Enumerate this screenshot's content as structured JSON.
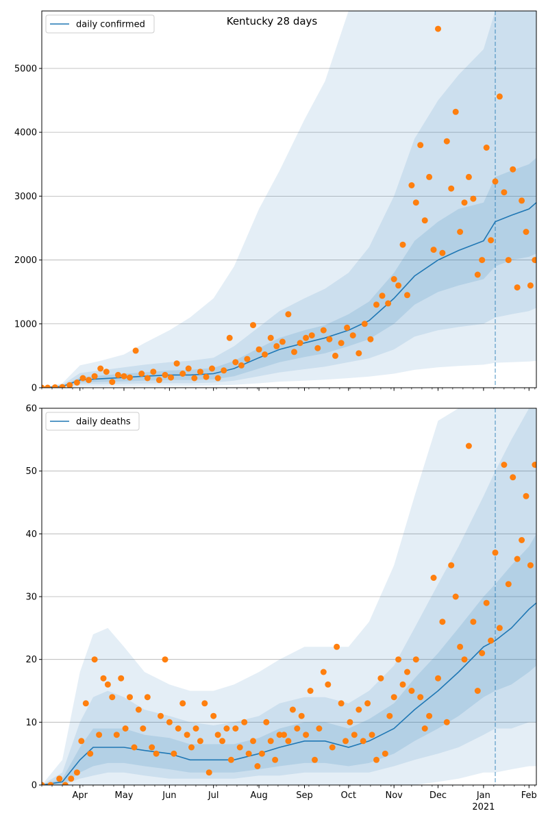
{
  "title": "Kentucky 28 days",
  "colors": {
    "line": "#1f77b4",
    "dots": "#ff7f0e",
    "band": "#1f77b4",
    "grid": "#b0b0b0",
    "vline": "#1f77b4"
  },
  "x_axis": {
    "month_labels": [
      "Apr",
      "May",
      "Jun",
      "Jul",
      "Aug",
      "Sep",
      "Oct",
      "Nov",
      "Dec",
      "Jan",
      "Feb"
    ],
    "year_label": "2021",
    "start_date": "2020-03-06",
    "end_date": "2021-02-06",
    "forecast_start": "2021-01-09"
  },
  "chart_data": [
    {
      "type": "line",
      "legend": "daily confirmed",
      "legend_position": "top-left",
      "ylim": [
        0,
        5900
      ],
      "yticks": [
        0,
        1000,
        2000,
        3000,
        4000,
        5000
      ],
      "grid": "horizontal",
      "line": {
        "name": "daily confirmed",
        "dates": [
          "2020-03-06",
          "2020-03-20",
          "2020-04-01",
          "2020-04-15",
          "2020-05-01",
          "2020-05-15",
          "2020-06-01",
          "2020-06-15",
          "2020-07-01",
          "2020-07-15",
          "2020-08-01",
          "2020-08-15",
          "2020-09-01",
          "2020-09-15",
          "2020-10-01",
          "2020-10-15",
          "2020-11-01",
          "2020-11-15",
          "2020-12-01",
          "2020-12-15",
          "2021-01-01",
          "2021-01-09",
          "2021-01-20",
          "2021-02-01",
          "2021-02-06"
        ],
        "values": [
          0,
          20,
          120,
          140,
          160,
          180,
          200,
          200,
          220,
          300,
          470,
          600,
          700,
          780,
          900,
          1050,
          1400,
          1750,
          2000,
          2150,
          2300,
          2600,
          2700,
          2800,
          2900
        ]
      },
      "bands": [
        {
          "name": "inner",
          "lower": [
            0,
            10,
            80,
            90,
            100,
            110,
            120,
            120,
            130,
            180,
            300,
            400,
            480,
            540,
            650,
            760,
            1000,
            1300,
            1500,
            1600,
            1700,
            1900,
            2000,
            2050,
            2100
          ],
          "upper": [
            0,
            30,
            160,
            190,
            220,
            240,
            270,
            280,
            310,
            420,
            620,
            780,
            900,
            980,
            1150,
            1350,
            1800,
            2300,
            2600,
            2800,
            2900,
            3300,
            3400,
            3500,
            3600
          ]
        },
        {
          "name": "middle",
          "lower": [
            0,
            5,
            50,
            55,
            60,
            65,
            70,
            70,
            80,
            110,
            180,
            240,
            290,
            330,
            400,
            460,
            600,
            800,
            900,
            950,
            1000,
            1100,
            1150,
            1200,
            1250
          ],
          "upper": [
            0,
            45,
            230,
            270,
            320,
            360,
            400,
            420,
            470,
            650,
            950,
            1200,
            1400,
            1550,
            1800,
            2200,
            3000,
            3900,
            4500,
            4900,
            5300,
            5900,
            5900,
            5900,
            5900
          ]
        },
        {
          "name": "outer",
          "lower": [
            0,
            2,
            20,
            22,
            25,
            27,
            30,
            30,
            35,
            45,
            70,
            95,
            110,
            125,
            150,
            175,
            220,
            280,
            320,
            340,
            360,
            390,
            400,
            410,
            420
          ],
          "upper": [
            0,
            70,
            350,
            420,
            520,
            700,
            900,
            1100,
            1400,
            1900,
            2800,
            3400,
            4200,
            4800,
            5900,
            5900,
            5900,
            5900,
            5900,
            5900,
            5900,
            5900,
            5900,
            5900,
            5900
          ]
        }
      ],
      "points": {
        "name": "observed",
        "dates": [
          "2020-03-06",
          "2020-03-10",
          "2020-03-15",
          "2020-03-20",
          "2020-03-25",
          "2020-03-30",
          "2020-04-03",
          "2020-04-07",
          "2020-04-11",
          "2020-04-15",
          "2020-04-19",
          "2020-04-23",
          "2020-04-27",
          "2020-05-01",
          "2020-05-05",
          "2020-05-09",
          "2020-05-13",
          "2020-05-17",
          "2020-05-21",
          "2020-05-25",
          "2020-05-29",
          "2020-06-02",
          "2020-06-06",
          "2020-06-10",
          "2020-06-14",
          "2020-06-18",
          "2020-06-22",
          "2020-06-26",
          "2020-06-30",
          "2020-07-04",
          "2020-07-08",
          "2020-07-12",
          "2020-07-16",
          "2020-07-20",
          "2020-07-24",
          "2020-07-28",
          "2020-08-01",
          "2020-08-05",
          "2020-08-09",
          "2020-08-13",
          "2020-08-17",
          "2020-08-21",
          "2020-08-25",
          "2020-08-29",
          "2020-09-02",
          "2020-09-06",
          "2020-09-10",
          "2020-09-14",
          "2020-09-18",
          "2020-09-22",
          "2020-09-26",
          "2020-09-30",
          "2020-10-04",
          "2020-10-08",
          "2020-10-12",
          "2020-10-16",
          "2020-10-20",
          "2020-10-24",
          "2020-10-28",
          "2020-11-01",
          "2020-11-04",
          "2020-11-07",
          "2020-11-10",
          "2020-11-13",
          "2020-11-16",
          "2020-11-19",
          "2020-11-22",
          "2020-11-25",
          "2020-11-28",
          "2020-12-01",
          "2020-12-04",
          "2020-12-07",
          "2020-12-10",
          "2020-12-13",
          "2020-12-16",
          "2020-12-19",
          "2020-12-22",
          "2020-12-25",
          "2020-12-28",
          "2020-12-31",
          "2021-01-03",
          "2021-01-06",
          "2021-01-09",
          "2021-01-12",
          "2021-01-15",
          "2021-01-18",
          "2021-01-21",
          "2021-01-24",
          "2021-01-27",
          "2021-01-30",
          "2021-02-02",
          "2021-02-05"
        ],
        "values": [
          0,
          0,
          5,
          10,
          40,
          80,
          150,
          120,
          180,
          300,
          250,
          90,
          200,
          180,
          160,
          580,
          220,
          150,
          250,
          120,
          200,
          160,
          380,
          220,
          300,
          150,
          250,
          170,
          300,
          150,
          270,
          780,
          400,
          350,
          450,
          980,
          600,
          520,
          780,
          650,
          720,
          1150,
          560,
          700,
          780,
          820,
          620,
          900,
          760,
          500,
          700,
          940,
          820,
          540,
          1000,
          760,
          1300,
          1440,
          1320,
          1700,
          1600,
          2240,
          1450,
          3170,
          2900,
          3800,
          2620,
          3300,
          2160,
          5620,
          2110,
          3860,
          3120,
          4320,
          2440,
          2900,
          3300,
          2960,
          1770,
          2000,
          3760,
          2310,
          3230,
          4560,
          3060,
          2000,
          3420,
          1570,
          2930,
          2440,
          1600,
          2000
        ]
      }
    },
    {
      "type": "line",
      "legend": "daily deaths",
      "legend_position": "top-left",
      "ylim": [
        0,
        60
      ],
      "yticks": [
        0,
        10,
        20,
        30,
        40,
        50,
        60
      ],
      "grid": "horizontal",
      "line": {
        "name": "daily deaths",
        "dates": [
          "2020-03-06",
          "2020-03-20",
          "2020-04-01",
          "2020-04-10",
          "2020-04-20",
          "2020-05-01",
          "2020-05-15",
          "2020-06-01",
          "2020-06-15",
          "2020-07-01",
          "2020-07-15",
          "2020-08-01",
          "2020-08-15",
          "2020-09-01",
          "2020-09-15",
          "2020-10-01",
          "2020-10-15",
          "2020-11-01",
          "2020-11-15",
          "2020-12-01",
          "2020-12-15",
          "2021-01-01",
          "2021-01-09",
          "2021-01-20",
          "2021-02-01",
          "2021-02-06"
        ],
        "values": [
          0,
          0.5,
          4,
          6,
          6,
          6,
          5.5,
          5,
          4,
          4,
          4,
          5,
          6,
          7,
          7,
          6,
          7,
          9,
          12,
          15,
          18,
          22,
          23,
          25,
          28,
          29
        ]
      },
      "bands": [
        {
          "name": "inner",
          "lower": [
            0,
            0,
            2,
            3,
            3.5,
            3.5,
            3,
            2.5,
            2,
            2,
            2,
            2.5,
            3,
            3.5,
            3.5,
            3,
            3.5,
            5,
            7,
            9,
            11,
            14,
            15,
            16,
            18,
            19
          ],
          "upper": [
            0,
            1,
            6,
            9,
            9,
            9,
            8,
            7.5,
            6.5,
            6.5,
            6.5,
            7.5,
            9,
            10,
            10,
            9,
            10.5,
            13,
            17,
            21,
            25,
            30,
            32,
            35,
            38,
            40
          ]
        },
        {
          "name": "middle",
          "lower": [
            0,
            0,
            1,
            1.5,
            2,
            2,
            1.5,
            1,
            1,
            1,
            1,
            1.5,
            1.5,
            2,
            2,
            2,
            2,
            3,
            4,
            5,
            6,
            8,
            9,
            9,
            10,
            10
          ],
          "upper": [
            0,
            2,
            10,
            14,
            15,
            14,
            12,
            11,
            10,
            9.5,
            10,
            11,
            13,
            14,
            14,
            13,
            15,
            19,
            25,
            32,
            38,
            46,
            50,
            55,
            60,
            60
          ]
        },
        {
          "name": "outer",
          "lower": [
            0,
            0,
            0,
            0,
            0,
            0,
            0,
            0,
            0,
            0,
            0,
            0,
            0,
            0,
            0,
            0,
            0,
            0,
            0,
            0.5,
            1,
            2,
            2,
            2.5,
            3,
            3
          ],
          "upper": [
            0,
            4,
            18,
            24,
            25,
            22,
            18,
            16,
            15,
            15,
            16,
            18,
            20,
            22,
            22,
            22,
            26,
            35,
            46,
            58,
            60,
            60,
            60,
            60,
            60,
            60
          ]
        }
      ],
      "points": {
        "name": "observed",
        "dates": [
          "2020-03-06",
          "2020-03-12",
          "2020-03-18",
          "2020-03-22",
          "2020-03-26",
          "2020-03-30",
          "2020-04-02",
          "2020-04-05",
          "2020-04-08",
          "2020-04-11",
          "2020-04-14",
          "2020-04-17",
          "2020-04-20",
          "2020-04-23",
          "2020-04-26",
          "2020-04-29",
          "2020-05-02",
          "2020-05-05",
          "2020-05-08",
          "2020-05-11",
          "2020-05-14",
          "2020-05-17",
          "2020-05-20",
          "2020-05-23",
          "2020-05-26",
          "2020-05-29",
          "2020-06-01",
          "2020-06-04",
          "2020-06-07",
          "2020-06-10",
          "2020-06-13",
          "2020-06-16",
          "2020-06-19",
          "2020-06-22",
          "2020-06-25",
          "2020-06-28",
          "2020-07-01",
          "2020-07-04",
          "2020-07-07",
          "2020-07-10",
          "2020-07-13",
          "2020-07-16",
          "2020-07-19",
          "2020-07-22",
          "2020-07-25",
          "2020-07-28",
          "2020-07-31",
          "2020-08-03",
          "2020-08-06",
          "2020-08-09",
          "2020-08-12",
          "2020-08-15",
          "2020-08-18",
          "2020-08-21",
          "2020-08-24",
          "2020-08-27",
          "2020-08-30",
          "2020-09-02",
          "2020-09-05",
          "2020-09-08",
          "2020-09-11",
          "2020-09-14",
          "2020-09-17",
          "2020-09-20",
          "2020-09-23",
          "2020-09-26",
          "2020-09-29",
          "2020-10-02",
          "2020-10-05",
          "2020-10-08",
          "2020-10-11",
          "2020-10-14",
          "2020-10-17",
          "2020-10-20",
          "2020-10-23",
          "2020-10-26",
          "2020-10-29",
          "2020-11-01",
          "2020-11-04",
          "2020-11-07",
          "2020-11-10",
          "2020-11-13",
          "2020-11-16",
          "2020-11-19",
          "2020-11-22",
          "2020-11-25",
          "2020-11-28",
          "2020-12-01",
          "2020-12-04",
          "2020-12-07",
          "2020-12-10",
          "2020-12-13",
          "2020-12-16",
          "2020-12-19",
          "2020-12-22",
          "2020-12-25",
          "2020-12-28",
          "2020-12-31",
          "2021-01-03",
          "2021-01-06",
          "2021-01-09",
          "2021-01-12",
          "2021-01-15",
          "2021-01-18",
          "2021-01-21",
          "2021-01-24",
          "2021-01-27",
          "2021-01-30",
          "2021-02-02",
          "2021-02-05"
        ],
        "values": [
          0,
          0,
          1,
          0,
          1,
          2,
          7,
          13,
          5,
          20,
          8,
          17,
          16,
          14,
          8,
          17,
          9,
          14,
          6,
          12,
          9,
          14,
          6,
          5,
          11,
          20,
          10,
          5,
          9,
          13,
          8,
          6,
          9,
          7,
          13,
          2,
          11,
          8,
          7,
          9,
          4,
          9,
          6,
          10,
          5,
          7,
          3,
          5,
          10,
          7,
          4,
          8,
          8,
          7,
          12,
          9,
          11,
          8,
          15,
          4,
          9,
          18,
          16,
          6,
          22,
          13,
          7,
          10,
          8,
          12,
          7,
          13,
          8,
          4,
          17,
          5,
          11,
          14,
          20,
          16,
          18,
          15,
          20,
          14,
          9,
          11,
          33,
          17,
          26,
          10,
          35,
          30,
          22,
          20,
          54,
          26,
          15,
          21,
          29,
          23,
          37,
          25,
          51,
          32,
          49,
          36,
          39,
          46,
          35,
          51
        ]
      }
    }
  ]
}
